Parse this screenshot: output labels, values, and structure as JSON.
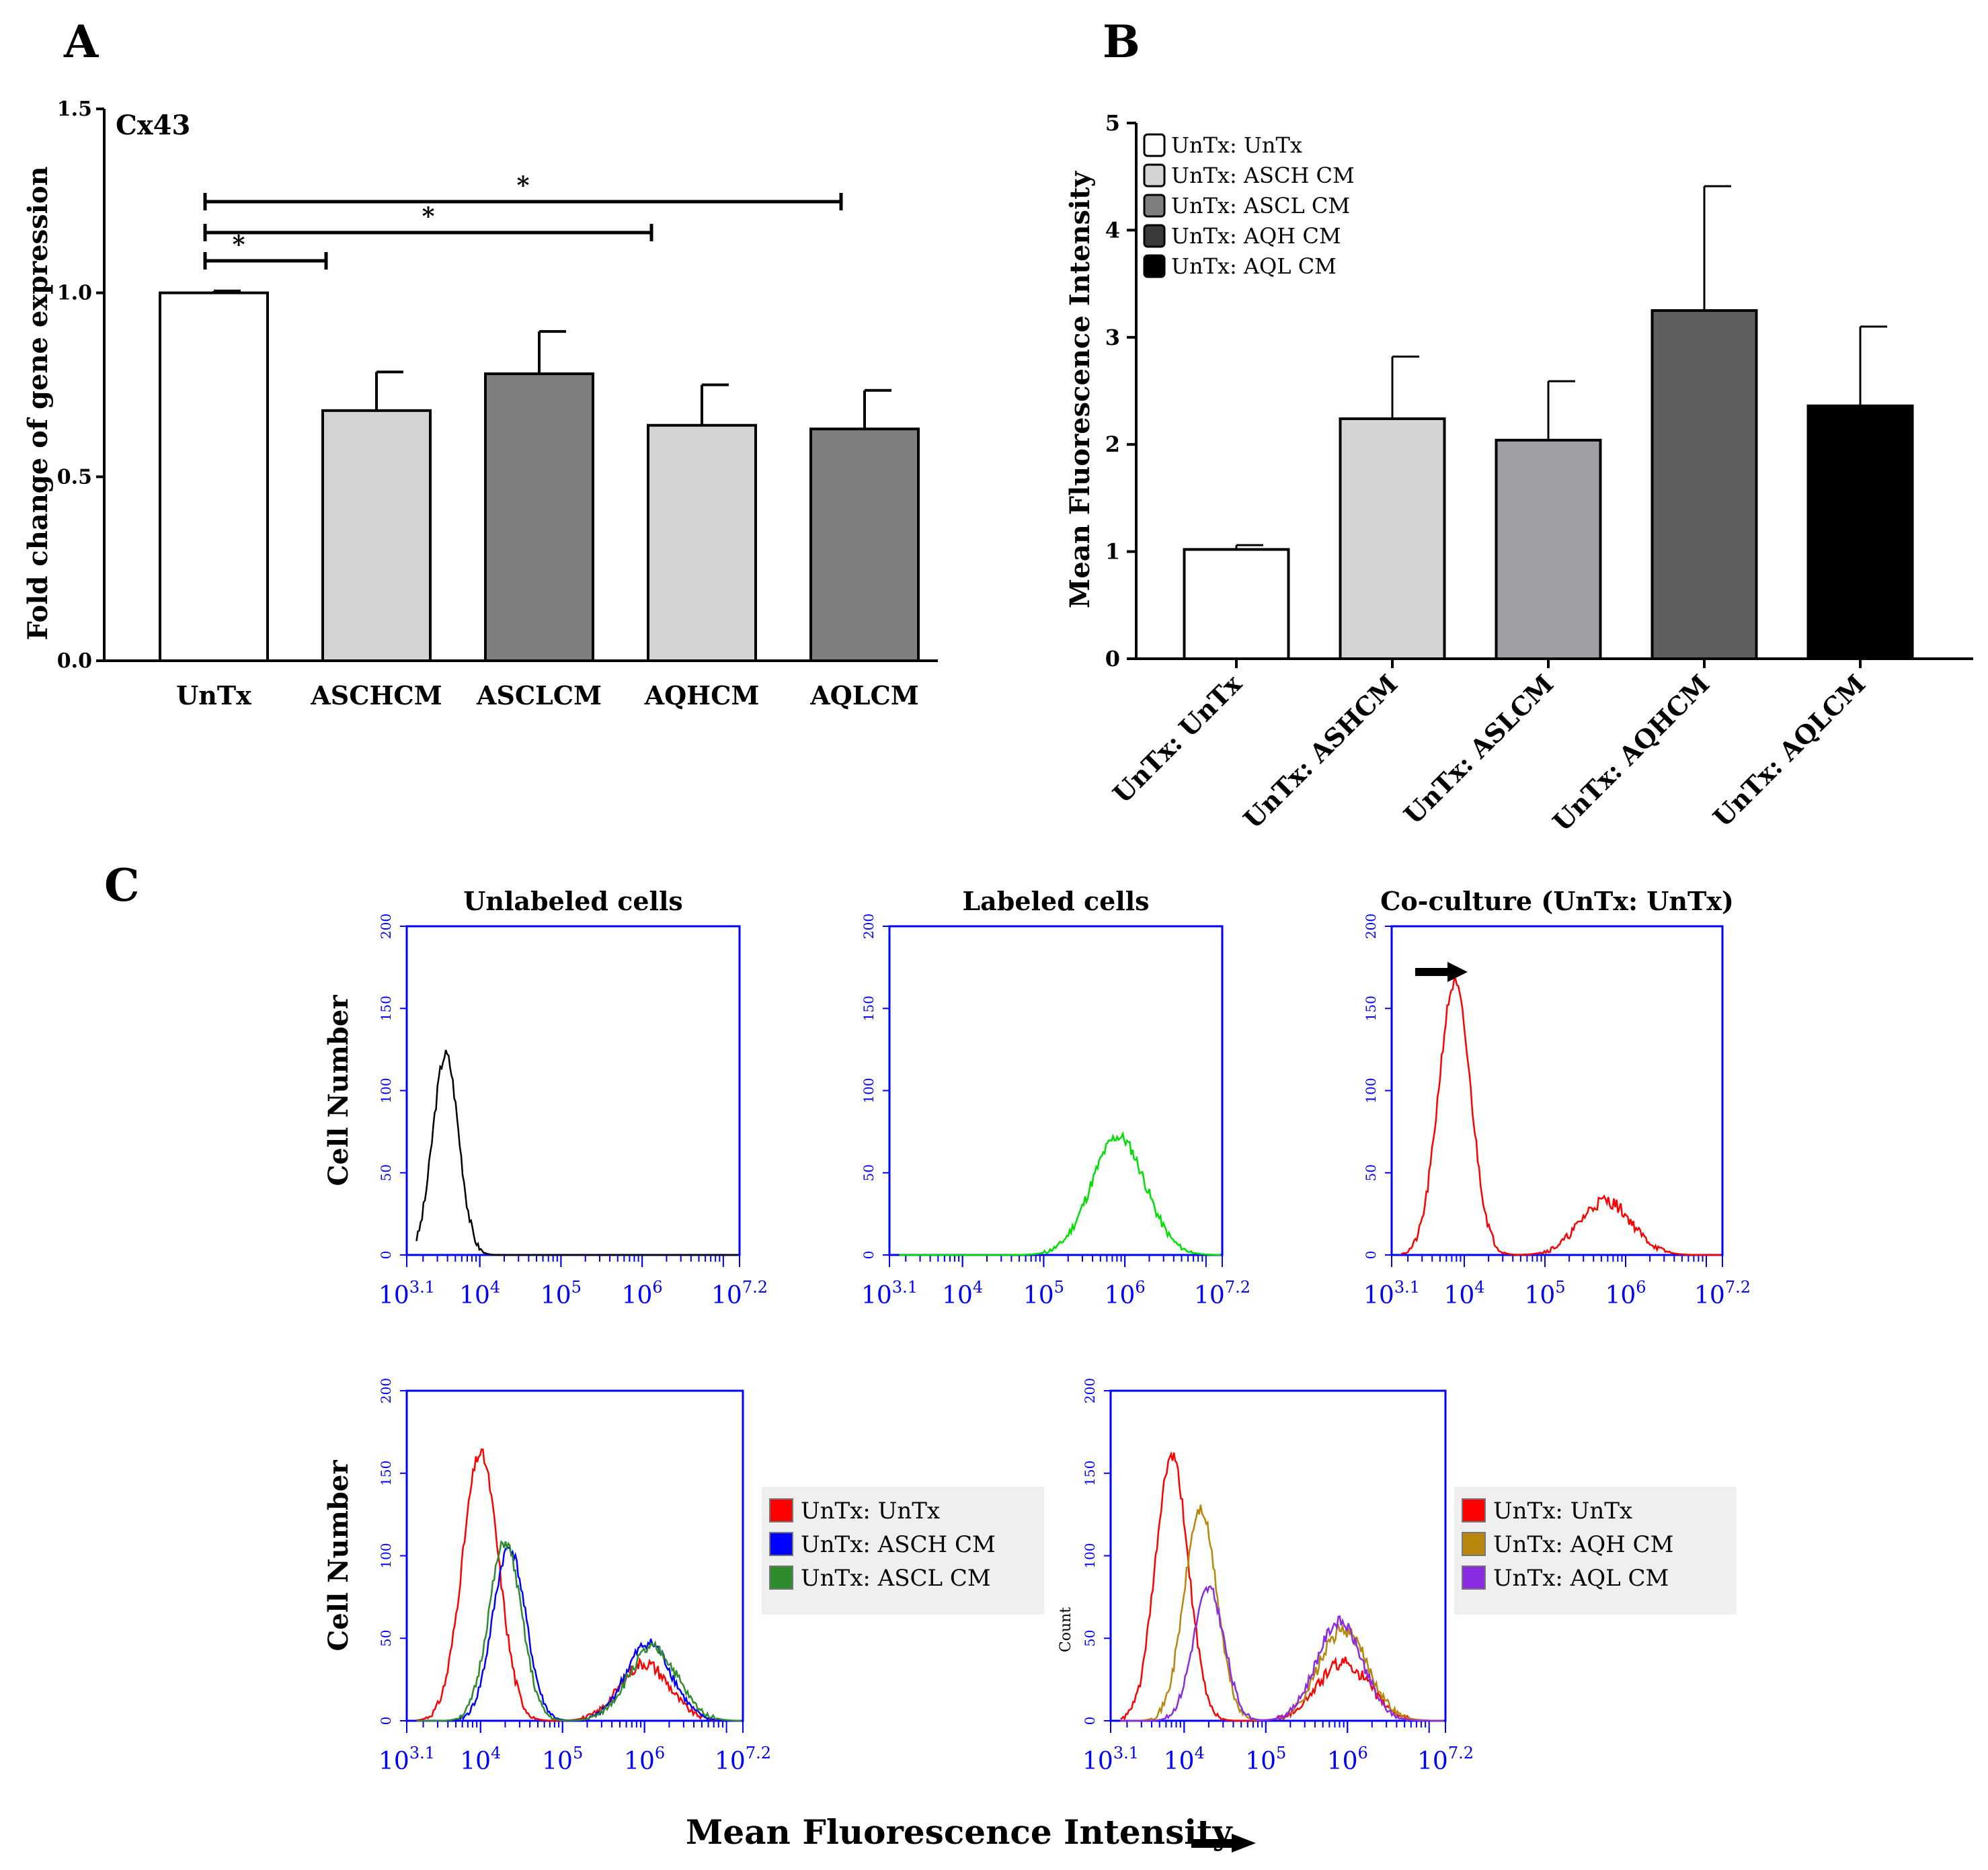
{
  "panels": {
    "a_label": "A",
    "b_label": "B",
    "c_label": "C"
  },
  "chart_data": [
    {
      "id": "A",
      "type": "bar",
      "title": "Cx43",
      "xlabel": "",
      "ylabel": "Fold change of gene expression",
      "ylim": [
        0,
        1.5
      ],
      "yticks": [
        "0.0",
        "0.5",
        "1.0",
        "1.5"
      ],
      "categories": [
        "UnTx",
        "ASCHCM",
        "ASCLCM",
        "AQHCM",
        "AQLCM"
      ],
      "values": [
        1.0,
        0.68,
        0.78,
        0.64,
        0.63
      ],
      "errors": [
        0.005,
        0.105,
        0.115,
        0.11,
        0.105
      ],
      "colors": [
        "#ffffff",
        "#d4d4d4",
        "#7f7f7f",
        "#d4d4d4",
        "#7f7f7f"
      ],
      "significance": [
        {
          "from": 0,
          "to": 1,
          "label": "*"
        },
        {
          "from": 0,
          "to": 3,
          "label": "*"
        },
        {
          "from": 0,
          "to": 4,
          "label": "*"
        }
      ]
    },
    {
      "id": "B",
      "type": "bar",
      "xlabel": "",
      "ylabel": "Mean Fluorescence Intensity",
      "ylim": [
        0,
        5
      ],
      "yticks": [
        "0",
        "1",
        "2",
        "3",
        "4",
        "5"
      ],
      "categories": [
        "UnTx: UnTx",
        "UnTx: ASHCM",
        "UnTx: ASLCM",
        "UnTx: AQHCM",
        "UnTx: AQLCM"
      ],
      "values": [
        1.02,
        2.24,
        2.04,
        3.25,
        2.36
      ],
      "errors": [
        0.04,
        0.58,
        0.55,
        1.16,
        0.74
      ],
      "colors": [
        "#ffffff",
        "#d4d4d4",
        "#a0a0a4",
        "#5f5f5f",
        "#000000"
      ],
      "legend": {
        "position": "top-left",
        "entries": [
          {
            "label": "UnTx: UnTx",
            "color": "#ffffff"
          },
          {
            "label": "UnTx: ASCH CM",
            "color": "#d4d4d4"
          },
          {
            "label": "UnTx: ASCL CM",
            "color": "#7f7f7f"
          },
          {
            "label": "UnTx: AQH CM",
            "color": "#3a3a3a"
          },
          {
            "label": "UnTx: AQL CM",
            "color": "#000000"
          }
        ]
      }
    },
    {
      "id": "C1",
      "type": "line",
      "title": "Unlabeled cells",
      "ylabel": "Cell Number",
      "xlim": [
        3.1,
        7.2
      ],
      "ylim": [
        0,
        200
      ],
      "yticks": [
        "0",
        "50",
        "100",
        "150",
        "200"
      ],
      "xticks": [
        "3.1",
        "4",
        "5",
        "6",
        "7.2"
      ],
      "series": [
        {
          "name": "Unlabeled",
          "color": "#000000",
          "peaks": [
            {
              "center": 3.58,
              "sigma": 0.16,
              "height": 122
            }
          ],
          "jitter": 8,
          "seed": 3
        }
      ]
    },
    {
      "id": "C2",
      "type": "line",
      "title": "Labeled cells",
      "ylabel": "",
      "xlim": [
        3.1,
        7.2
      ],
      "ylim": [
        0,
        200
      ],
      "yticks": [
        "0",
        "50",
        "100",
        "150",
        "200"
      ],
      "xticks": [
        "3.1",
        "4",
        "5",
        "6",
        "7.2"
      ],
      "series": [
        {
          "name": "Labeled",
          "color": "#00e000",
          "peaks": [
            {
              "center": 5.92,
              "sigma": 0.33,
              "height": 72
            }
          ],
          "jitter": 7,
          "seed": 11
        }
      ]
    },
    {
      "id": "C3",
      "type": "line",
      "title": "Co-culture (UnTx: UnTx)",
      "ylabel": "",
      "xlim": [
        3.1,
        7.2
      ],
      "ylim": [
        0,
        200
      ],
      "yticks": [
        "0",
        "50",
        "100",
        "150",
        "200"
      ],
      "xticks": [
        "3.1",
        "4",
        "5",
        "6",
        "7.2"
      ],
      "annotation": "arrow pointing to first peak",
      "series": [
        {
          "name": "UnTx: UnTx",
          "color": "#ff0000",
          "peaks": [
            {
              "center": 3.88,
              "sigma": 0.2,
              "height": 165
            },
            {
              "center": 5.75,
              "sigma": 0.32,
              "height": 33
            }
          ],
          "jitter": 8,
          "seed": 21
        }
      ]
    },
    {
      "id": "C4",
      "type": "line",
      "ylabel": "Cell Number",
      "xlim": [
        3.1,
        7.2
      ],
      "ylim": [
        0,
        200
      ],
      "yticks": [
        "0",
        "50",
        "100",
        "150",
        "200"
      ],
      "xticks": [
        "3.1",
        "4",
        "5",
        "6",
        "7.2"
      ],
      "legend": {
        "position": "right"
      },
      "series": [
        {
          "name": "UnTx: UnTx",
          "color": "#ff0000",
          "peaks": [
            {
              "center": 4.0,
              "sigma": 0.22,
              "height": 162
            },
            {
              "center": 6.0,
              "sigma": 0.3,
              "height": 35
            }
          ],
          "jitter": 8,
          "seed": 31
        },
        {
          "name": "UnTx: ASCH CM",
          "color": "#0000ff",
          "peaks": [
            {
              "center": 4.35,
              "sigma": 0.2,
              "height": 105
            },
            {
              "center": 6.05,
              "sigma": 0.28,
              "height": 47
            }
          ],
          "jitter": 7,
          "seed": 41
        },
        {
          "name": "UnTx: ASCL CM",
          "color": "#2e8b2e",
          "peaks": [
            {
              "center": 4.3,
              "sigma": 0.2,
              "height": 108
            },
            {
              "center": 6.1,
              "sigma": 0.3,
              "height": 44
            }
          ],
          "jitter": 7,
          "seed": 51
        }
      ]
    },
    {
      "id": "C5",
      "type": "line",
      "ylabel": "Count",
      "xlim": [
        3.1,
        7.2
      ],
      "ylim": [
        0,
        200
      ],
      "yticks": [
        "0",
        "50",
        "100",
        "150",
        "200"
      ],
      "xticks": [
        "3.1",
        "4",
        "5",
        "6",
        "7.2"
      ],
      "legend": {
        "position": "right"
      },
      "series": [
        {
          "name": "UnTx: UnTx",
          "color": "#ff0000",
          "peaks": [
            {
              "center": 3.85,
              "sigma": 0.2,
              "height": 160
            },
            {
              "center": 5.95,
              "sigma": 0.32,
              "height": 35
            }
          ],
          "jitter": 8,
          "seed": 61
        },
        {
          "name": "UnTx: AQH CM",
          "color": "#b8860b",
          "peaks": [
            {
              "center": 4.2,
              "sigma": 0.2,
              "height": 128
            },
            {
              "center": 5.95,
              "sigma": 0.3,
              "height": 55
            }
          ],
          "jitter": 8,
          "seed": 71
        },
        {
          "name": "UnTx: AQL CM",
          "color": "#8a2be2",
          "peaks": [
            {
              "center": 4.3,
              "sigma": 0.19,
              "height": 80
            },
            {
              "center": 5.9,
              "sigma": 0.28,
              "height": 60
            }
          ],
          "jitter": 7,
          "seed": 81
        }
      ]
    }
  ],
  "footer": {
    "xlabel": "Mean Fluorescence Intensity"
  }
}
